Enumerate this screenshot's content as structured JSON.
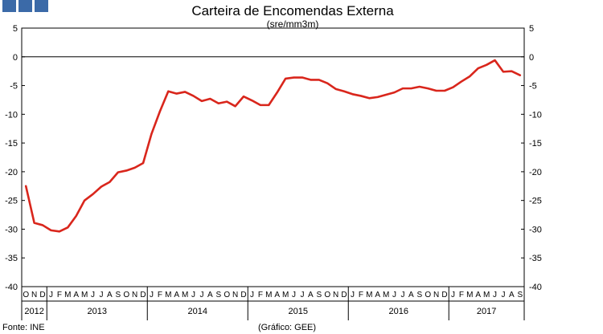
{
  "logo": {
    "color": "#3b6aa8",
    "squares": 3
  },
  "footer": {
    "source": "Fonte: INE",
    "credit": "(Gráfico: GEE)"
  },
  "chart_data": {
    "type": "line",
    "title": "Carteira de Encomendas Externa",
    "subtitle": "(sre/mm3m)",
    "ylim": [
      -40,
      5
    ],
    "yticks": [
      5,
      0,
      -5,
      -10,
      -15,
      -20,
      -25,
      -30,
      -35,
      -40
    ],
    "grid": false,
    "zero_line": true,
    "line_color": "#d9261c",
    "month_labels": [
      "O",
      "N",
      "D",
      "J",
      "F",
      "M",
      "A",
      "M",
      "J",
      "J",
      "A",
      "S",
      "O",
      "N",
      "D",
      "J",
      "F",
      "M",
      "A",
      "M",
      "J",
      "J",
      "A",
      "S",
      "O",
      "N",
      "D",
      "J",
      "F",
      "M",
      "A",
      "M",
      "J",
      "J",
      "A",
      "S",
      "O",
      "N",
      "D",
      "J",
      "F",
      "M",
      "A",
      "M",
      "J",
      "J",
      "A",
      "S",
      "O",
      "N",
      "D",
      "J",
      "F",
      "M",
      "A",
      "M",
      "J",
      "J",
      "A",
      "S"
    ],
    "years": [
      {
        "label": "2012",
        "months": 3
      },
      {
        "label": "2013",
        "months": 12
      },
      {
        "label": "2014",
        "months": 12
      },
      {
        "label": "2015",
        "months": 12
      },
      {
        "label": "2016",
        "months": 12
      },
      {
        "label": "2017",
        "months": 9
      }
    ],
    "x": [
      "2012-10",
      "2012-11",
      "2012-12",
      "2013-01",
      "2013-02",
      "2013-03",
      "2013-04",
      "2013-05",
      "2013-06",
      "2013-07",
      "2013-08",
      "2013-09",
      "2013-10",
      "2013-11",
      "2013-12",
      "2014-01",
      "2014-02",
      "2014-03",
      "2014-04",
      "2014-05",
      "2014-06",
      "2014-07",
      "2014-08",
      "2014-09",
      "2014-10",
      "2014-11",
      "2014-12",
      "2015-01",
      "2015-02",
      "2015-03",
      "2015-04",
      "2015-05",
      "2015-06",
      "2015-07",
      "2015-08",
      "2015-09",
      "2015-10",
      "2015-11",
      "2015-12",
      "2016-01",
      "2016-02",
      "2016-03",
      "2016-04",
      "2016-05",
      "2016-06",
      "2016-07",
      "2016-08",
      "2016-09",
      "2016-10",
      "2016-11",
      "2016-12",
      "2017-01",
      "2017-02",
      "2017-03",
      "2017-04",
      "2017-05",
      "2017-06",
      "2017-07",
      "2017-08",
      "2017-09"
    ],
    "values": [
      -22.5,
      -28.9,
      -29.3,
      -30.2,
      -30.4,
      -29.7,
      -27.7,
      -25.0,
      -23.9,
      -22.6,
      -21.8,
      -20.1,
      -19.8,
      -19.3,
      -18.5,
      -13.4,
      -9.5,
      -6.0,
      -6.4,
      -6.1,
      -6.8,
      -7.7,
      -7.3,
      -8.1,
      -7.8,
      -8.6,
      -6.9,
      -7.6,
      -8.4,
      -8.4,
      -6.2,
      -3.8,
      -3.6,
      -3.6,
      -4.0,
      -4.0,
      -4.6,
      -5.6,
      -6.0,
      -6.5,
      -6.8,
      -7.2,
      -7.0,
      -6.6,
      -6.2,
      -5.5,
      -5.5,
      -5.2,
      -5.5,
      -5.9,
      -5.9,
      -5.3,
      -4.3,
      -3.4,
      -2.0,
      -1.4,
      -0.6,
      -2.6,
      -2.5,
      -3.2
    ]
  }
}
